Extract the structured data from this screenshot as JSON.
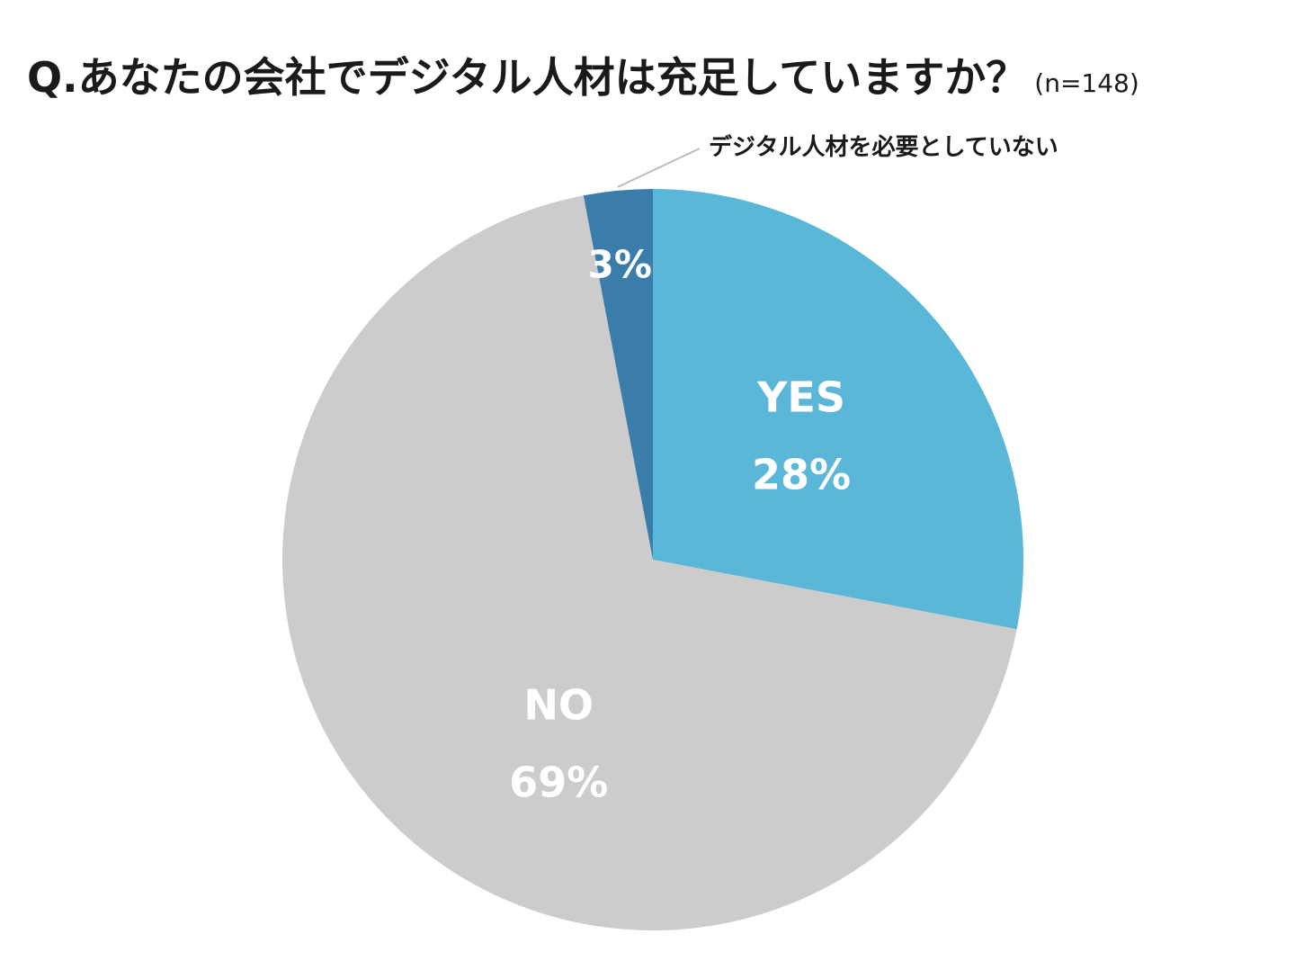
{
  "title": {
    "main": "Q.あなたの会社でデジタル人材は充足していますか？",
    "sample": "(n=148)"
  },
  "chart_data": {
    "type": "pie",
    "title": "Q.あなたの会社でデジタル人材は充足していますか？",
    "subtitle": "(n=148)",
    "slices": [
      {
        "label": "YES",
        "value": 28,
        "value_label": "28%",
        "color": "#5bb7d8"
      },
      {
        "label": "NO",
        "value": 69,
        "value_label": "69%",
        "color": "#cccccc"
      },
      {
        "label": "デジタル人材を必要としていない",
        "value": 3,
        "value_label": "3%",
        "color": "#3a7dab"
      }
    ],
    "start_angle_deg": 0,
    "direction": "clockwise",
    "label_colors": {
      "inside": "#ffffff",
      "callout": "#1a1a1a",
      "leader": "#bbbbbb"
    }
  }
}
